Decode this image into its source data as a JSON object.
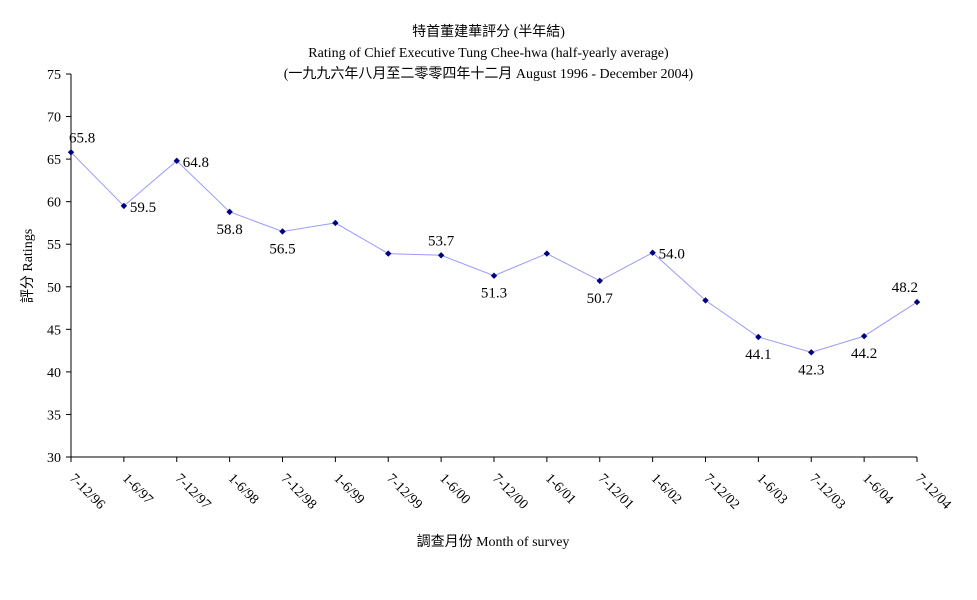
{
  "chart_data": {
    "type": "line",
    "title": "特首董建華評分 (半年結)",
    "subtitle_1": "Rating of Chief Executive Tung Chee-hwa  (half-yearly average)",
    "subtitle_2": "(一九九六年八月至二零零四年十二月 August 1996 - December 2004)",
    "xlabel": "調查月份 Month of survey",
    "ylabel": "評分 Ratings",
    "ylim": [
      30,
      75
    ],
    "yticks": [
      30,
      35,
      40,
      45,
      50,
      55,
      60,
      65,
      70,
      75
    ],
    "categories": [
      "7-12/96",
      "1-6/97",
      "7-12/97",
      "1-6/98",
      "7-12/98",
      "1-6/99",
      "7-12/99",
      "1-6/00",
      "7-12/00",
      "1-6/01",
      "7-12/01",
      "1-6/02",
      "7-12/02",
      "1-6/03",
      "7-12/03",
      "1-6/04",
      "7-12/04"
    ],
    "series": [
      {
        "values": [
          65.8,
          59.5,
          64.8,
          58.8,
          56.5,
          57.5,
          53.9,
          53.7,
          51.3,
          53.9,
          50.7,
          54.0,
          48.4,
          44.1,
          42.3,
          44.2,
          48.2
        ],
        "line_color": "#9999ff",
        "marker_color": "#000080"
      }
    ],
    "data_labels": [
      {
        "index": 0,
        "text": "65.8",
        "position": "above"
      },
      {
        "index": 1,
        "text": "59.5",
        "position": "right"
      },
      {
        "index": 2,
        "text": "64.8",
        "position": "right"
      },
      {
        "index": 3,
        "text": "58.8",
        "position": "below"
      },
      {
        "index": 4,
        "text": "56.5",
        "position": "below"
      },
      {
        "index": 7,
        "text": "53.7",
        "position": "above"
      },
      {
        "index": 8,
        "text": "51.3",
        "position": "below"
      },
      {
        "index": 10,
        "text": "50.7",
        "position": "below"
      },
      {
        "index": 11,
        "text": "54.0",
        "position": "right"
      },
      {
        "index": 13,
        "text": "44.1",
        "position": "below"
      },
      {
        "index": 14,
        "text": "42.3",
        "position": "below"
      },
      {
        "index": 15,
        "text": "44.2",
        "position": "below"
      },
      {
        "index": 16,
        "text": "48.2",
        "position": "above"
      }
    ],
    "grid": false,
    "legend": "none"
  }
}
